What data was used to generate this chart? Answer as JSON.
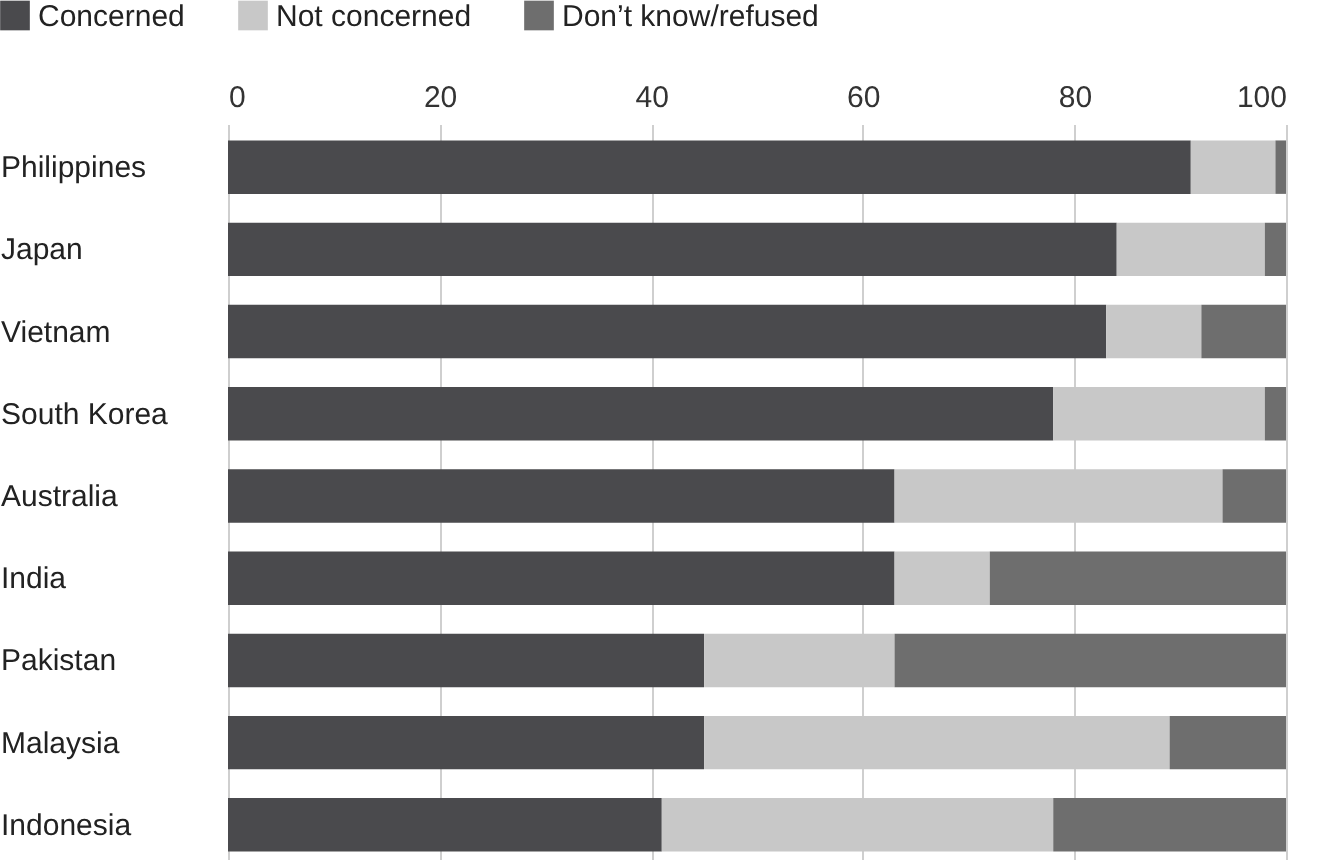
{
  "chart_data": {
    "type": "bar",
    "orientation": "horizontal",
    "stacked": true,
    "categories": [
      "Philippines",
      "Japan",
      "Vietnam",
      "South Korea",
      "Australia",
      "India",
      "Pakistan",
      "Malaysia",
      "Indonesia"
    ],
    "series": [
      {
        "name": "Concerned",
        "color": "#4a4a4d",
        "values": [
          91,
          84,
          83,
          78,
          63,
          63,
          45,
          45,
          41
        ]
      },
      {
        "name": "Not concerned",
        "color": "#c8c8c8",
        "values": [
          8,
          14,
          9,
          20,
          31,
          9,
          18,
          44,
          37
        ]
      },
      {
        "name": "Don’t know/refused",
        "color": "#6e6e6e",
        "values": [
          1,
          2,
          8,
          2,
          6,
          28,
          37,
          11,
          22
        ]
      }
    ],
    "xlim": [
      0,
      100
    ],
    "xticks": [
      0,
      20,
      40,
      60,
      80,
      100
    ],
    "grid": "x",
    "legend": "top"
  }
}
